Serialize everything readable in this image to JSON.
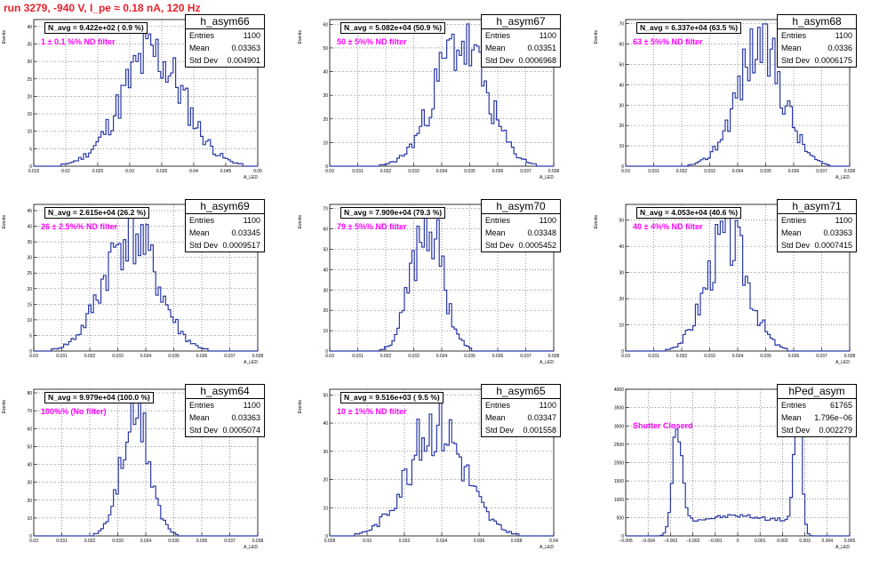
{
  "title": "run 3279,  -940 V, I_pe ≈ 0.18 nA, 120 Hz",
  "chart_data": [
    {
      "type": "histogram",
      "name": "h_asym66",
      "entries": "1100",
      "mean": "0.03363",
      "stddev": "0.004901",
      "navg": "N_avg = 9.422e+02 ( 0.9 %)",
      "filter": "1 ± 0.1 %% ND filter",
      "xlabel": "A_LED",
      "ylabel": "Events",
      "xlim": [
        0.015,
        0.05
      ],
      "ylim": [
        0,
        42
      ],
      "xticks": [
        "0.015",
        "0.02",
        "0.025",
        "0.03",
        "0.035",
        "0.04",
        "0.045",
        "0.05"
      ],
      "yticks": [
        "0",
        "5",
        "10",
        "15",
        "20",
        "25",
        "30",
        "35",
        "40"
      ],
      "peak_mean": 0.0336,
      "peak_sigma": 0.0049,
      "peak_height": 32,
      "seed": 11
    },
    {
      "type": "histogram",
      "name": "h_asym67",
      "entries": "1100",
      "mean": "0.03351",
      "stddev": "0.0006968",
      "navg": "N_avg = 5.082e+04 (50.9 %)",
      "filter": "50 ± 5%% ND filter",
      "xlabel": "A_LED",
      "ylabel": "Events",
      "xlim": [
        0.03,
        0.036
      ],
      "ylim": [
        0,
        62
      ],
      "xticks": [
        "0.03",
        "0.031",
        "0.032",
        "0.033",
        "0.034",
        "0.035",
        "0.036",
        "0.037",
        "0.038"
      ],
      "yticks": [
        "0",
        "10",
        "20",
        "30",
        "40",
        "50",
        "60"
      ],
      "peak_mean": 0.0335,
      "peak_sigma": 0.0007,
      "peak_height": 52,
      "seed": 23
    },
    {
      "type": "histogram",
      "name": "h_asym68",
      "entries": "1100",
      "mean": "0.0336",
      "stddev": "0.0006175",
      "navg": "N_avg = 6.337e+04 (63.5 %)",
      "filter": "63 ± 5%% ND filter",
      "xlabel": "A_LED",
      "ylabel": "Events",
      "xlim": [
        0.03,
        0.036
      ],
      "ylim": [
        0,
        72
      ],
      "xticks": [
        "0.03",
        "0.031",
        "0.032",
        "0.033",
        "0.034",
        "0.035",
        "0.036",
        "0.037",
        "0.038"
      ],
      "yticks": [
        "0",
        "10",
        "20",
        "30",
        "40",
        "50",
        "60",
        "70"
      ],
      "peak_mean": 0.0336,
      "peak_sigma": 0.00062,
      "peak_height": 60,
      "seed": 37
    },
    {
      "type": "histogram",
      "name": "h_asym69",
      "entries": "1100",
      "mean": "0.03345",
      "stddev": "0.0009517",
      "navg": "N_avg = 2.615e+04 (26.2 %)",
      "filter": "26 ± 2.5%% ND filter",
      "xlabel": "A_LED",
      "ylabel": "Events",
      "xlim": [
        0.03,
        0.038
      ],
      "ylim": [
        0,
        47
      ],
      "xticks": [
        "0.03",
        "0.031",
        "0.032",
        "0.033",
        "0.034",
        "0.035",
        "0.036",
        "0.037",
        "0.038"
      ],
      "yticks": [
        "0",
        "5",
        "10",
        "15",
        "20",
        "25",
        "30",
        "35",
        "40",
        "45"
      ],
      "peak_mean": 0.03345,
      "peak_sigma": 0.00095,
      "peak_height": 38,
      "seed": 41
    },
    {
      "type": "histogram",
      "name": "h_asym70",
      "entries": "1100",
      "mean": "0.03348",
      "stddev": "0.0005452",
      "navg": "N_avg = 7.909e+04 (79.3 %)",
      "filter": "79 ± 5%% ND filter",
      "xlabel": "A_LED",
      "ylabel": "Events",
      "xlim": [
        0.03,
        0.038
      ],
      "ylim": [
        0,
        72
      ],
      "xticks": [
        "0.03",
        "0.031",
        "0.032",
        "0.033",
        "0.034",
        "0.035",
        "0.036",
        "0.037",
        "0.038"
      ],
      "yticks": [
        "0",
        "10",
        "20",
        "30",
        "40",
        "50",
        "60",
        "70"
      ],
      "peak_mean": 0.03348,
      "peak_sigma": 0.00055,
      "peak_height": 64,
      "seed": 53
    },
    {
      "type": "histogram",
      "name": "h_asym71",
      "entries": "1100",
      "mean": "0.03363",
      "stddev": "0.0007415",
      "navg": "N_avg = 4.053e+04 (40.6 %)",
      "filter": "40 ± 4%% ND filter",
      "xlabel": "A_LED",
      "ylabel": "Events",
      "xlim": [
        0.03,
        0.038
      ],
      "ylim": [
        0,
        56
      ],
      "xticks": [
        "0.03",
        "0.031",
        "0.032",
        "0.033",
        "0.034",
        "0.035",
        "0.036",
        "0.037",
        "0.038"
      ],
      "yticks": [
        "0",
        "10",
        "20",
        "30",
        "40",
        "50"
      ],
      "peak_mean": 0.03363,
      "peak_sigma": 0.00074,
      "peak_height": 44,
      "seed": 67
    },
    {
      "type": "histogram",
      "name": "h_asym64",
      "entries": "1100",
      "mean": "0.03363",
      "stddev": "0.0005074",
      "navg": "N_avg = 9.979e+04 (100.0 %)",
      "filter": "100%% (No filter)",
      "xlabel": "A_LED",
      "ylabel": "Events",
      "xlim": [
        0.03,
        0.038
      ],
      "ylim": [
        0,
        82
      ],
      "xticks": [
        "0.03",
        "0.031",
        "0.032",
        "0.033",
        "0.034",
        "0.035",
        "0.036",
        "0.037",
        "0.038"
      ],
      "yticks": [
        "0",
        "10",
        "20",
        "30",
        "40",
        "50",
        "60",
        "70",
        "80"
      ],
      "peak_mean": 0.03363,
      "peak_sigma": 0.0005,
      "peak_height": 68,
      "seed": 71
    },
    {
      "type": "histogram",
      "name": "h_asym65",
      "entries": "1100",
      "mean": "0.03347",
      "stddev": "0.001558",
      "navg": "N_avg = 9.516e+03 ( 9.5 %)",
      "filter": "10 ± 1%% ND filter",
      "xlabel": "A_LED",
      "ylabel": "Events",
      "xlim": [
        0.0275,
        0.04
      ],
      "ylim": [
        0,
        52
      ],
      "xticks": [
        "0.028",
        "0.03",
        "0.032",
        "0.034",
        "0.036",
        "0.038",
        "0.04"
      ],
      "yticks": [
        "0",
        "10",
        "20",
        "30",
        "40",
        "50"
      ],
      "peak_mean": 0.03347,
      "peak_sigma": 0.00156,
      "peak_height": 40,
      "seed": 83
    },
    {
      "type": "histogram",
      "name": "hPed_asym",
      "entries": "61765",
      "mean": "1.796e−06",
      "stddev": "0.002279",
      "navg": "",
      "filter": "Shutter Closerd",
      "xlabel": "A_LED",
      "ylabel": "",
      "xlim": [
        -0.005,
        0.005
      ],
      "ylim": [
        0,
        4000
      ],
      "xticks": [
        "−0.005",
        "−0.004",
        "−0.003",
        "−0.002",
        "−0.001",
        "0",
        "0.001",
        "0.002",
        "0.003",
        "0.004",
        "0.005"
      ],
      "yticks": [
        "0",
        "500",
        "1000",
        "1500",
        "2000",
        "2500",
        "3000",
        "3500",
        "4000"
      ],
      "pedestal": true,
      "seed": 97
    }
  ]
}
